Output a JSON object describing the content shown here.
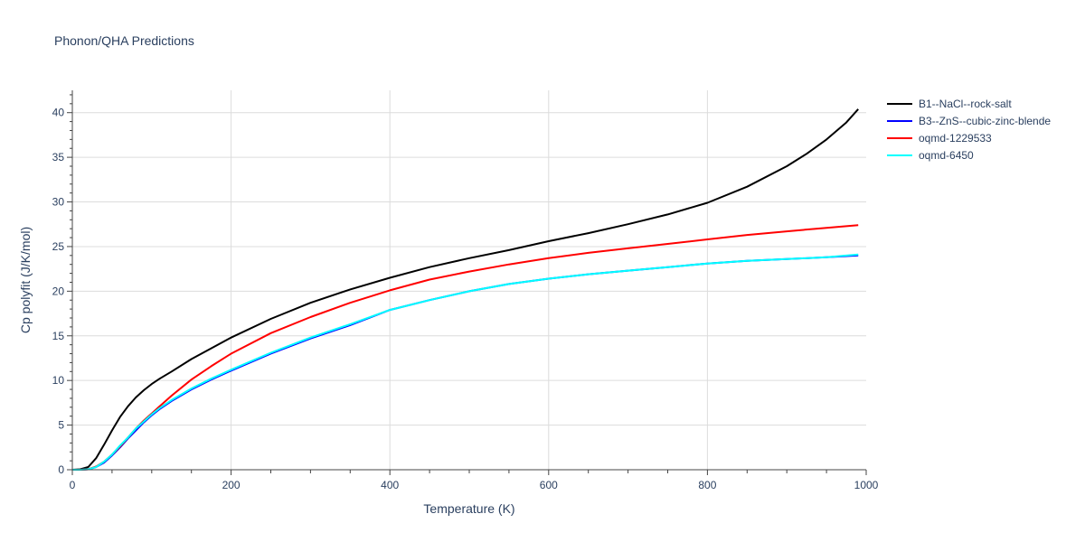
{
  "chart_data": {
    "type": "line",
    "title": "Phonon/QHA Predictions",
    "xlabel": "Temperature (K)",
    "ylabel": "Cp polyfit (J/K/mol)",
    "xlim": [
      0,
      1000
    ],
    "ylim": [
      0,
      42.5
    ],
    "xticks": [
      0,
      200,
      400,
      600,
      800,
      1000
    ],
    "yticks": [
      0,
      5,
      10,
      15,
      20,
      25,
      30,
      35,
      40
    ],
    "grid": true,
    "legend_position": "top-right",
    "series": [
      {
        "name": "B1--NaCl--rock-salt",
        "color": "#000000",
        "x": [
          0,
          10,
          20,
          30,
          40,
          50,
          60,
          70,
          80,
          90,
          100,
          110,
          125,
          150,
          175,
          200,
          250,
          300,
          350,
          400,
          450,
          500,
          550,
          600,
          650,
          700,
          750,
          800,
          850,
          900,
          925,
          950,
          975,
          990
        ],
        "y": [
          0,
          0.05,
          0.3,
          1.3,
          2.8,
          4.4,
          5.9,
          7.1,
          8.1,
          8.9,
          9.6,
          10.2,
          11.0,
          12.4,
          13.6,
          14.8,
          16.9,
          18.7,
          20.2,
          21.5,
          22.7,
          23.7,
          24.6,
          25.6,
          26.5,
          27.5,
          28.6,
          29.9,
          31.7,
          34.0,
          35.4,
          37.0,
          38.9,
          40.4
        ]
      },
      {
        "name": "B3--ZnS--cubic-zinc-blende",
        "color": "#0000ff",
        "x": [
          0,
          10,
          20,
          30,
          40,
          50,
          60,
          70,
          80,
          90,
          100,
          110,
          125,
          150,
          175,
          200,
          250,
          300,
          350,
          400,
          450,
          500,
          550,
          600,
          650,
          700,
          750,
          800,
          850,
          900,
          950,
          990
        ],
        "y": [
          0,
          0,
          0.05,
          0.3,
          0.8,
          1.6,
          2.5,
          3.5,
          4.4,
          5.3,
          6.1,
          6.8,
          7.7,
          9.0,
          10.1,
          11.1,
          13.0,
          14.7,
          16.2,
          17.9,
          19.0,
          20.0,
          20.8,
          21.4,
          21.9,
          22.3,
          22.7,
          23.1,
          23.4,
          23.6,
          23.8,
          24.0
        ]
      },
      {
        "name": "oqmd-1229533",
        "color": "#ff0000",
        "x": [
          0,
          10,
          20,
          30,
          40,
          50,
          60,
          70,
          80,
          90,
          100,
          110,
          125,
          150,
          175,
          200,
          250,
          300,
          350,
          400,
          450,
          500,
          550,
          600,
          650,
          700,
          750,
          800,
          850,
          900,
          950,
          990
        ],
        "y": [
          0,
          0,
          0.05,
          0.35,
          0.9,
          1.7,
          2.6,
          3.6,
          4.6,
          5.5,
          6.3,
          7.1,
          8.3,
          10.1,
          11.6,
          13.0,
          15.3,
          17.1,
          18.7,
          20.1,
          21.3,
          22.2,
          23.0,
          23.7,
          24.3,
          24.8,
          25.3,
          25.8,
          26.3,
          26.7,
          27.1,
          27.4
        ]
      },
      {
        "name": "oqmd-6450",
        "color": "#00ffff",
        "x": [
          0,
          10,
          20,
          30,
          40,
          50,
          60,
          70,
          80,
          90,
          100,
          110,
          125,
          150,
          175,
          200,
          250,
          300,
          350,
          400,
          450,
          500,
          550,
          600,
          650,
          700,
          750,
          800,
          850,
          900,
          950,
          990
        ],
        "y": [
          0,
          0,
          0.05,
          0.3,
          0.9,
          1.7,
          2.7,
          3.6,
          4.6,
          5.4,
          6.2,
          6.9,
          7.8,
          9.1,
          10.2,
          11.2,
          13.1,
          14.8,
          16.3,
          17.9,
          19.0,
          20.0,
          20.8,
          21.4,
          21.9,
          22.3,
          22.7,
          23.1,
          23.4,
          23.6,
          23.8,
          24.1
        ]
      }
    ]
  }
}
